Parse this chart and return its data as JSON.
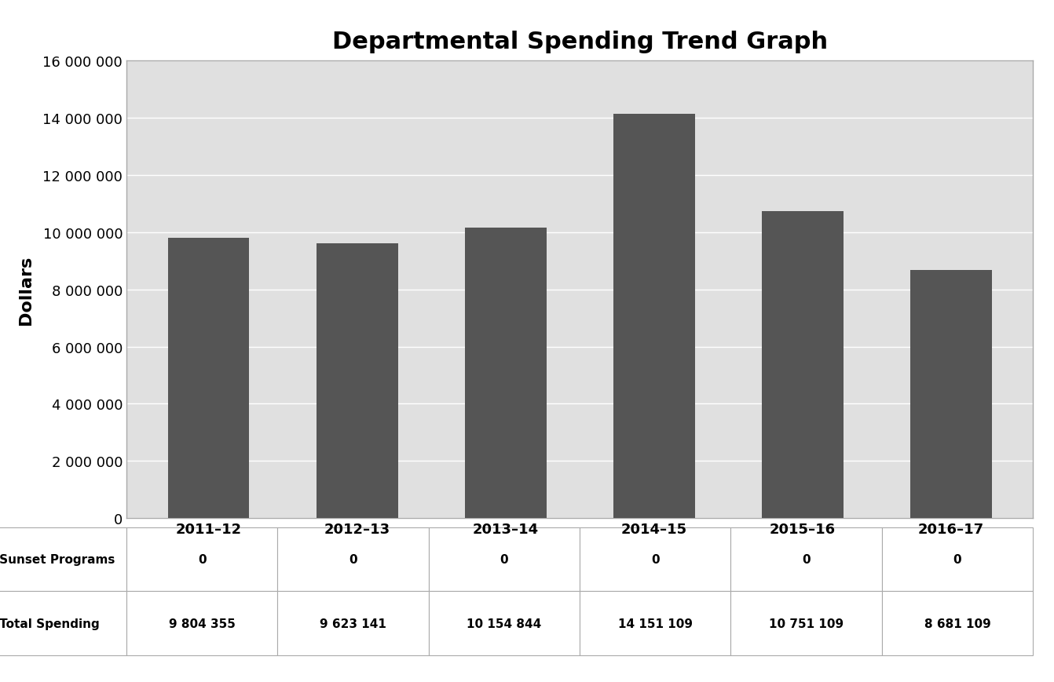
{
  "title": "Departmental Spending Trend Graph",
  "categories": [
    "2011–12",
    "2012–13",
    "2013–14",
    "2014–15",
    "2015–16",
    "2016–17"
  ],
  "total_spending": [
    9804355,
    9623141,
    10154844,
    14151109,
    10751109,
    8681109
  ],
  "sunset_programs": [
    0,
    0,
    0,
    0,
    0,
    0
  ],
  "bar_color": "#555555",
  "sunset_color": "#d0d0d0",
  "plot_bg_color": "#e0e0e0",
  "fig_bg_color": "#ffffff",
  "ylabel": "Dollars",
  "ylim": [
    0,
    16000000
  ],
  "ytick_step": 2000000,
  "title_fontsize": 22,
  "axis_label_fontsize": 16,
  "tick_fontsize": 13,
  "table_fontsize": 11,
  "grid_color": "#ffffff",
  "border_color": "#aaaaaa",
  "bar_width": 0.55
}
